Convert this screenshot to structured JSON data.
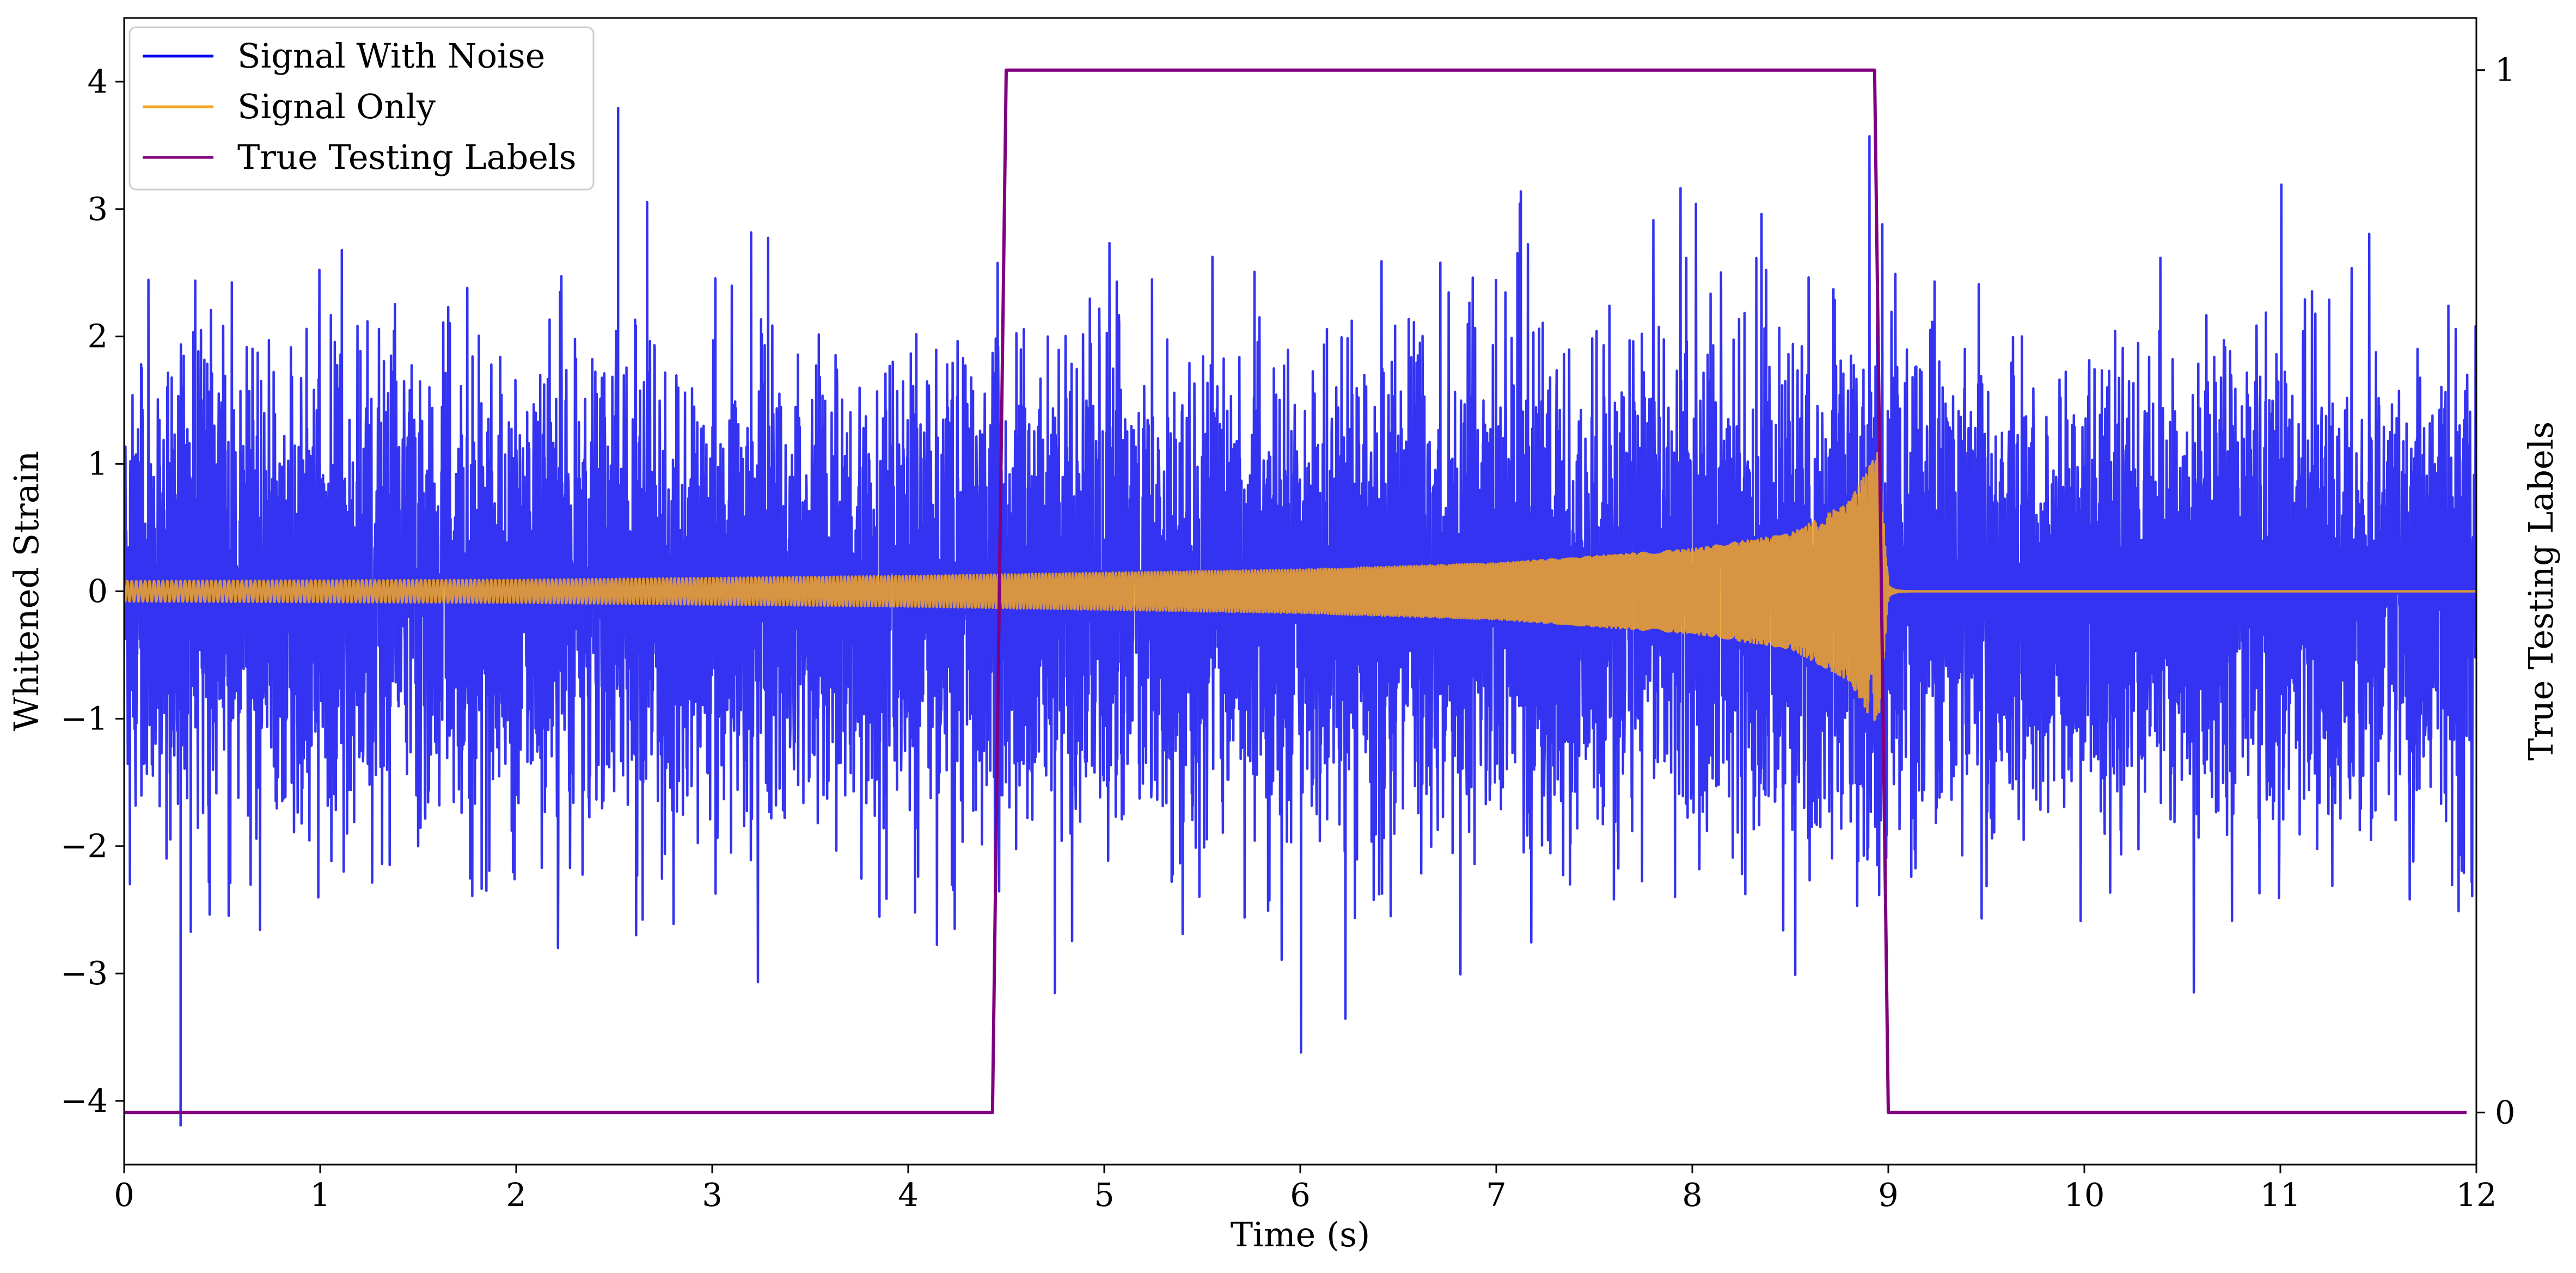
{
  "chart_data": {
    "type": "line",
    "title": "",
    "xlabel": "Time (s)",
    "ylabel": "Whitened Strain",
    "y2label": "True Testing Labels",
    "xlim": [
      0,
      12
    ],
    "ylim": [
      -4.5,
      4.5
    ],
    "y2lim": [
      -0.05,
      1.05
    ],
    "x_ticks": [
      {
        "value": 0,
        "label": "0"
      },
      {
        "value": 1,
        "label": "1"
      },
      {
        "value": 2,
        "label": "2"
      },
      {
        "value": 3,
        "label": "3"
      },
      {
        "value": 4,
        "label": "4"
      },
      {
        "value": 5,
        "label": "5"
      },
      {
        "value": 6,
        "label": "6"
      },
      {
        "value": 7,
        "label": "7"
      },
      {
        "value": 8,
        "label": "8"
      },
      {
        "value": 9,
        "label": "9"
      },
      {
        "value": 10,
        "label": "10"
      },
      {
        "value": 11,
        "label": "11"
      },
      {
        "value": 12,
        "label": "12"
      }
    ],
    "y_ticks": [
      {
        "value": 4,
        "label": "4"
      },
      {
        "value": 3,
        "label": "3"
      },
      {
        "value": 2,
        "label": "2"
      },
      {
        "value": 1,
        "label": "1"
      },
      {
        "value": 0,
        "label": "0"
      },
      {
        "value": -1,
        "label": "−1"
      },
      {
        "value": -2,
        "label": "−2"
      },
      {
        "value": -3,
        "label": "−3"
      },
      {
        "value": -4,
        "label": "−4"
      }
    ],
    "y2_ticks": [
      {
        "value": 1,
        "label": "1"
      },
      {
        "value": 0,
        "label": "0"
      }
    ],
    "grid": false,
    "legend_position": "top-left",
    "series": [
      {
        "name": "Signal With Noise",
        "axis": "left",
        "color": "#0000ee",
        "opacity": 0.8,
        "time_range": [
          0,
          12
        ],
        "noise_std": 0.9,
        "extreme_min": -4.2,
        "extreme_max": 3.8
      },
      {
        "name": "Signal Only",
        "axis": "left",
        "color": "#f5a623",
        "shape": "chirp",
        "time_range": [
          0,
          12
        ],
        "merger_time": 9.0,
        "amplitude_envelope": [
          {
            "t": 0,
            "amp": 0.08
          },
          {
            "t": 2,
            "amp": 0.09
          },
          {
            "t": 4,
            "amp": 0.12
          },
          {
            "t": 6,
            "amp": 0.17
          },
          {
            "t": 7,
            "amp": 0.22
          },
          {
            "t": 8,
            "amp": 0.33
          },
          {
            "t": 8.5,
            "amp": 0.45
          },
          {
            "t": 8.8,
            "amp": 0.7
          },
          {
            "t": 8.95,
            "amp": 1.1
          },
          {
            "t": 9.0,
            "amp": 0.05
          },
          {
            "t": 12,
            "amp": 0.0
          }
        ]
      },
      {
        "name": "True Testing Labels",
        "axis": "right",
        "color": "#800080",
        "x": [
          0,
          4.43,
          4.5,
          8.93,
          9.0,
          11.95
        ],
        "y": [
          0,
          0,
          1,
          1,
          0,
          0
        ]
      }
    ]
  }
}
